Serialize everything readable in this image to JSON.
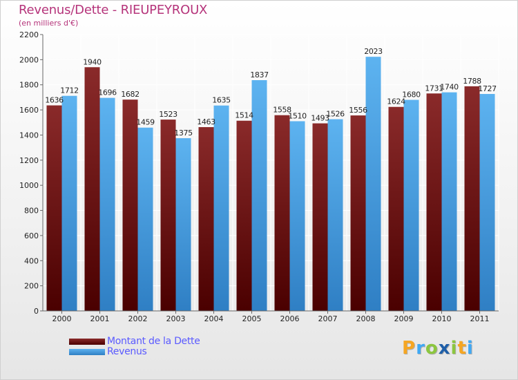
{
  "header": {
    "title": "Revenus/Dette - RIEUPEYROUX",
    "subtitle": "(en milliers d'€)"
  },
  "chart_data": {
    "type": "bar",
    "title": "Revenus/Dette - RIEUPEYROUX",
    "subtitle": "(en milliers d'€)",
    "categories": [
      "2000",
      "2001",
      "2002",
      "2003",
      "2004",
      "2005",
      "2006",
      "2007",
      "2008",
      "2009",
      "2010",
      "2011"
    ],
    "series": [
      {
        "name": "Montant de la Dette",
        "color": "#7a1e1e",
        "values": [
          1636,
          1940,
          1682,
          1523,
          1463,
          1514,
          1558,
          1493,
          1556,
          1624,
          1731,
          1788
        ],
        "labels": [
          "1636",
          "1940",
          "1682",
          "1523",
          "1463",
          "1514",
          "1558",
          "1493",
          "1556",
          "1624",
          "1731",
          "1788"
        ]
      },
      {
        "name": "Revenus",
        "color": "#4aa3e6",
        "values": [
          1712,
          1696,
          1459,
          1375,
          1635,
          1837,
          1510,
          1526,
          2023,
          1680,
          1740,
          1727
        ],
        "labels": [
          "1712",
          "1696",
          "1459",
          "1375",
          "1635",
          "1837",
          "1510",
          "1526",
          "2023",
          "1680",
          "1740",
          "1727"
        ]
      }
    ],
    "yticks": [
      "0",
      "200",
      "400",
      "600",
      "800",
      "1000",
      "1200",
      "1400",
      "1600",
      "1800",
      "2000",
      "2200"
    ],
    "ylim": [
      0,
      2200
    ],
    "xlabel": "",
    "ylabel": "",
    "grid": true,
    "legend": "bottom-left"
  },
  "legend": {
    "items": [
      {
        "label": "Montant de la Dette",
        "color": "#7a1e1e"
      },
      {
        "label": "Revenus",
        "color": "#4aa3e6"
      }
    ]
  },
  "logo": {
    "letters": [
      "P",
      "r",
      "o",
      "x",
      "i",
      "t",
      "i"
    ],
    "colors": [
      "#f5a623",
      "#3fa9f5",
      "#8cc63f",
      "#1f5fa8",
      "#8cc63f",
      "#f5a623",
      "#3fa9f5"
    ]
  }
}
